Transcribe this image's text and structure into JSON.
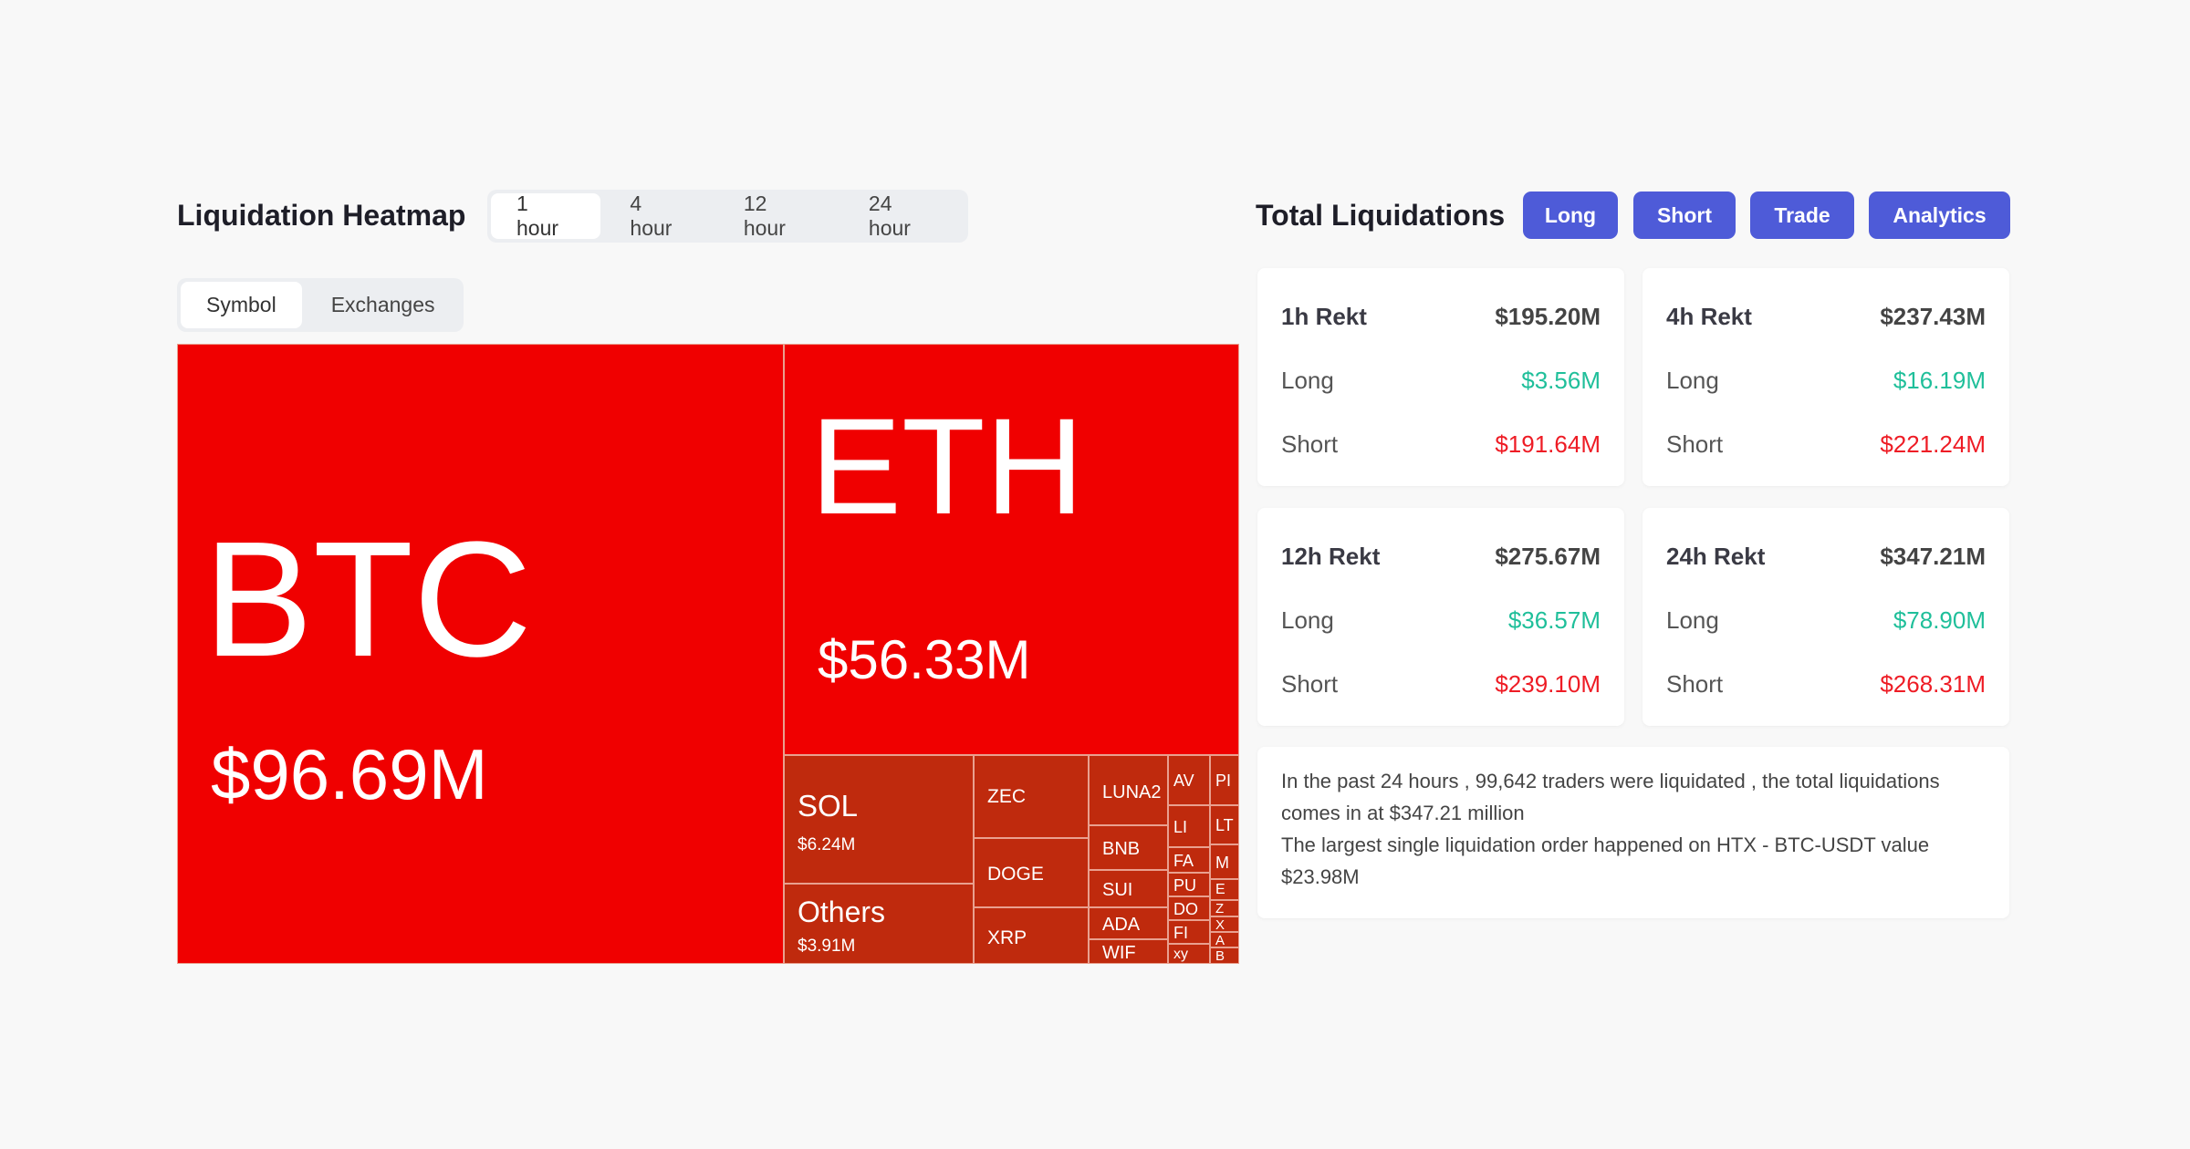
{
  "heatmap": {
    "title": "Liquidation Heatmap",
    "time_tabs": [
      "1 hour",
      "4 hour",
      "12 hour",
      "24 hour"
    ],
    "view_tabs": [
      "Symbol",
      "Exchanges"
    ],
    "cells": [
      {
        "label": "BTC",
        "value": "$96.69M"
      },
      {
        "label": "ETH",
        "value": "$56.33M"
      },
      {
        "label": "SOL",
        "value": "$6.24M"
      },
      {
        "label": "Others",
        "value": "$3.91M"
      },
      {
        "label": "ZEC"
      },
      {
        "label": "DOGE"
      },
      {
        "label": "XRP"
      },
      {
        "label": "LUNA2"
      },
      {
        "label": "BNB"
      },
      {
        "label": "SUI"
      },
      {
        "label": "ADA"
      },
      {
        "label": "WIF"
      },
      {
        "label": "AV"
      },
      {
        "label": "LI"
      },
      {
        "label": "FA"
      },
      {
        "label": "PU"
      },
      {
        "label": "DO"
      },
      {
        "label": "FI"
      },
      {
        "label": "xy"
      },
      {
        "label": "PI"
      },
      {
        "label": "LT"
      },
      {
        "label": "M"
      },
      {
        "label": "E"
      },
      {
        "label": "Z"
      },
      {
        "label": "X"
      },
      {
        "label": "A"
      },
      {
        "label": "B"
      }
    ]
  },
  "totals": {
    "title": "Total Liquidations",
    "buttons": [
      "Long",
      "Short",
      "Trade",
      "Analytics"
    ],
    "cards": [
      {
        "title": "1h Rekt",
        "total": "$195.20M",
        "long_label": "Long",
        "long": "$3.56M",
        "short_label": "Short",
        "short": "$191.64M"
      },
      {
        "title": "4h Rekt",
        "total": "$237.43M",
        "long_label": "Long",
        "long": "$16.19M",
        "short_label": "Short",
        "short": "$221.24M"
      },
      {
        "title": "12h Rekt",
        "total": "$275.67M",
        "long_label": "Long",
        "long": "$36.57M",
        "short_label": "Short",
        "short": "$239.10M"
      },
      {
        "title": "24h Rekt",
        "total": "$347.21M",
        "long_label": "Long",
        "long": "$78.90M",
        "short_label": "Short",
        "short": "$268.31M"
      }
    ],
    "summary": [
      "In the past 24 hours , 99,642 traders were liquidated , the total liquidations comes in at $347.21 million",
      "The largest single liquidation order happened on HTX - BTC-USDT value $23.98M"
    ]
  }
}
